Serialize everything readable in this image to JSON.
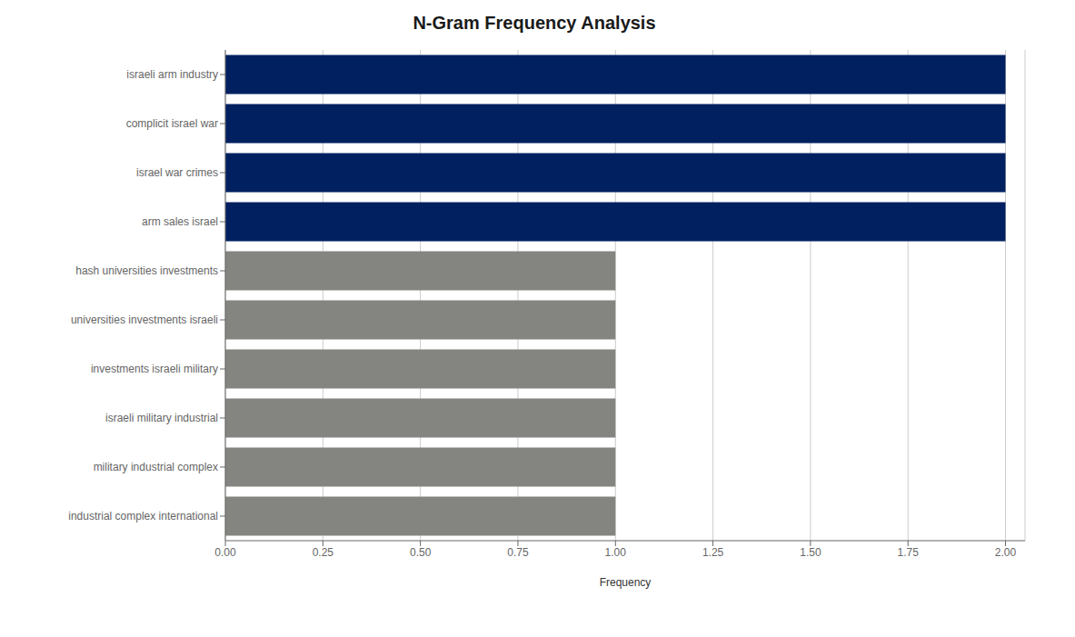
{
  "chart_data": {
    "type": "bar",
    "orientation": "horizontal",
    "title": "N-Gram Frequency Analysis",
    "xlabel": "Frequency",
    "categories": [
      "industrial complex international",
      "military industrial complex",
      "israeli military industrial",
      "investments israeli military",
      "universities investments israeli",
      "hash universities investments",
      "arm sales israel",
      "israel war crimes",
      "complicit israel war",
      "israeli arm industry"
    ],
    "values": [
      1,
      1,
      1,
      1,
      1,
      1,
      2,
      2,
      2,
      2
    ],
    "colors": [
      "#848480",
      "#848480",
      "#848480",
      "#848480",
      "#848480",
      "#848480",
      "#002060",
      "#002060",
      "#002060",
      "#002060"
    ],
    "xlim": [
      0,
      2.05
    ],
    "xticks": [
      {
        "value": 0,
        "label": "0.00"
      },
      {
        "value": 0.25,
        "label": "0.25"
      },
      {
        "value": 0.5,
        "label": "0.50"
      },
      {
        "value": 0.75,
        "label": "0.75"
      },
      {
        "value": 1,
        "label": "1.00"
      },
      {
        "value": 1.25,
        "label": "1.25"
      },
      {
        "value": 1.5,
        "label": "1.50"
      },
      {
        "value": 1.75,
        "label": "1.75"
      },
      {
        "value": 2,
        "label": "2.00"
      }
    ],
    "grid": true
  }
}
